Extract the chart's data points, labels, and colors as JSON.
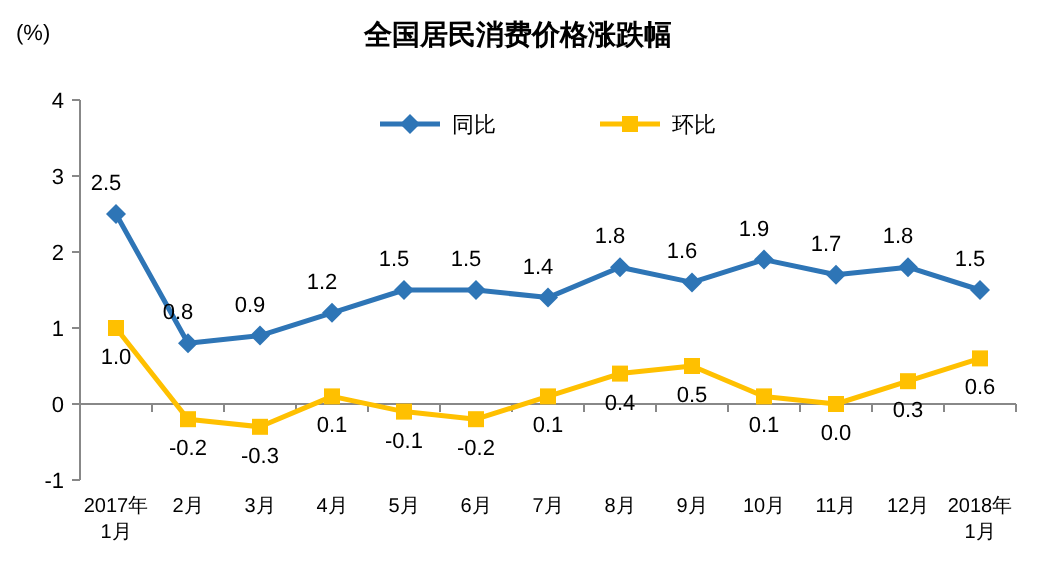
{
  "chart_data": {
    "type": "line",
    "title": "全国居民消费价格涨跌幅",
    "ylabel": "(%)",
    "categories": [
      "2017年\n1月",
      "2月",
      "3月",
      "4月",
      "5月",
      "6月",
      "7月",
      "8月",
      "9月",
      "10月",
      "11月",
      "12月",
      "2018年\n1月"
    ],
    "series": [
      {
        "name": "同比",
        "color": "#2e75b6",
        "marker": "diamond",
        "values": [
          2.5,
          0.8,
          0.9,
          1.2,
          1.5,
          1.5,
          1.4,
          1.8,
          1.6,
          1.9,
          1.7,
          1.8,
          1.5
        ],
        "value_labels": [
          "2.5",
          "0.8",
          "0.9",
          "1.2",
          "1.5",
          "1.5",
          "1.4",
          "1.8",
          "1.6",
          "1.9",
          "1.7",
          "1.8",
          "1.5"
        ]
      },
      {
        "name": "环比",
        "color": "#ffc000",
        "marker": "square",
        "values": [
          1.0,
          -0.2,
          -0.3,
          0.1,
          -0.1,
          -0.2,
          0.1,
          0.4,
          0.5,
          0.1,
          0.0,
          0.3,
          0.6
        ],
        "value_labels": [
          "1.0",
          "-0.2",
          "-0.3",
          "0.1",
          "-0.1",
          "-0.2",
          "0.1",
          "0.4",
          "0.5",
          "0.1",
          "0.0",
          "0.3",
          "0.6"
        ]
      }
    ],
    "ylim": [
      -1,
      4
    ],
    "yticks": [
      -1,
      0,
      1,
      2,
      3,
      4
    ],
    "legend": "top",
    "line_style": "solid"
  }
}
